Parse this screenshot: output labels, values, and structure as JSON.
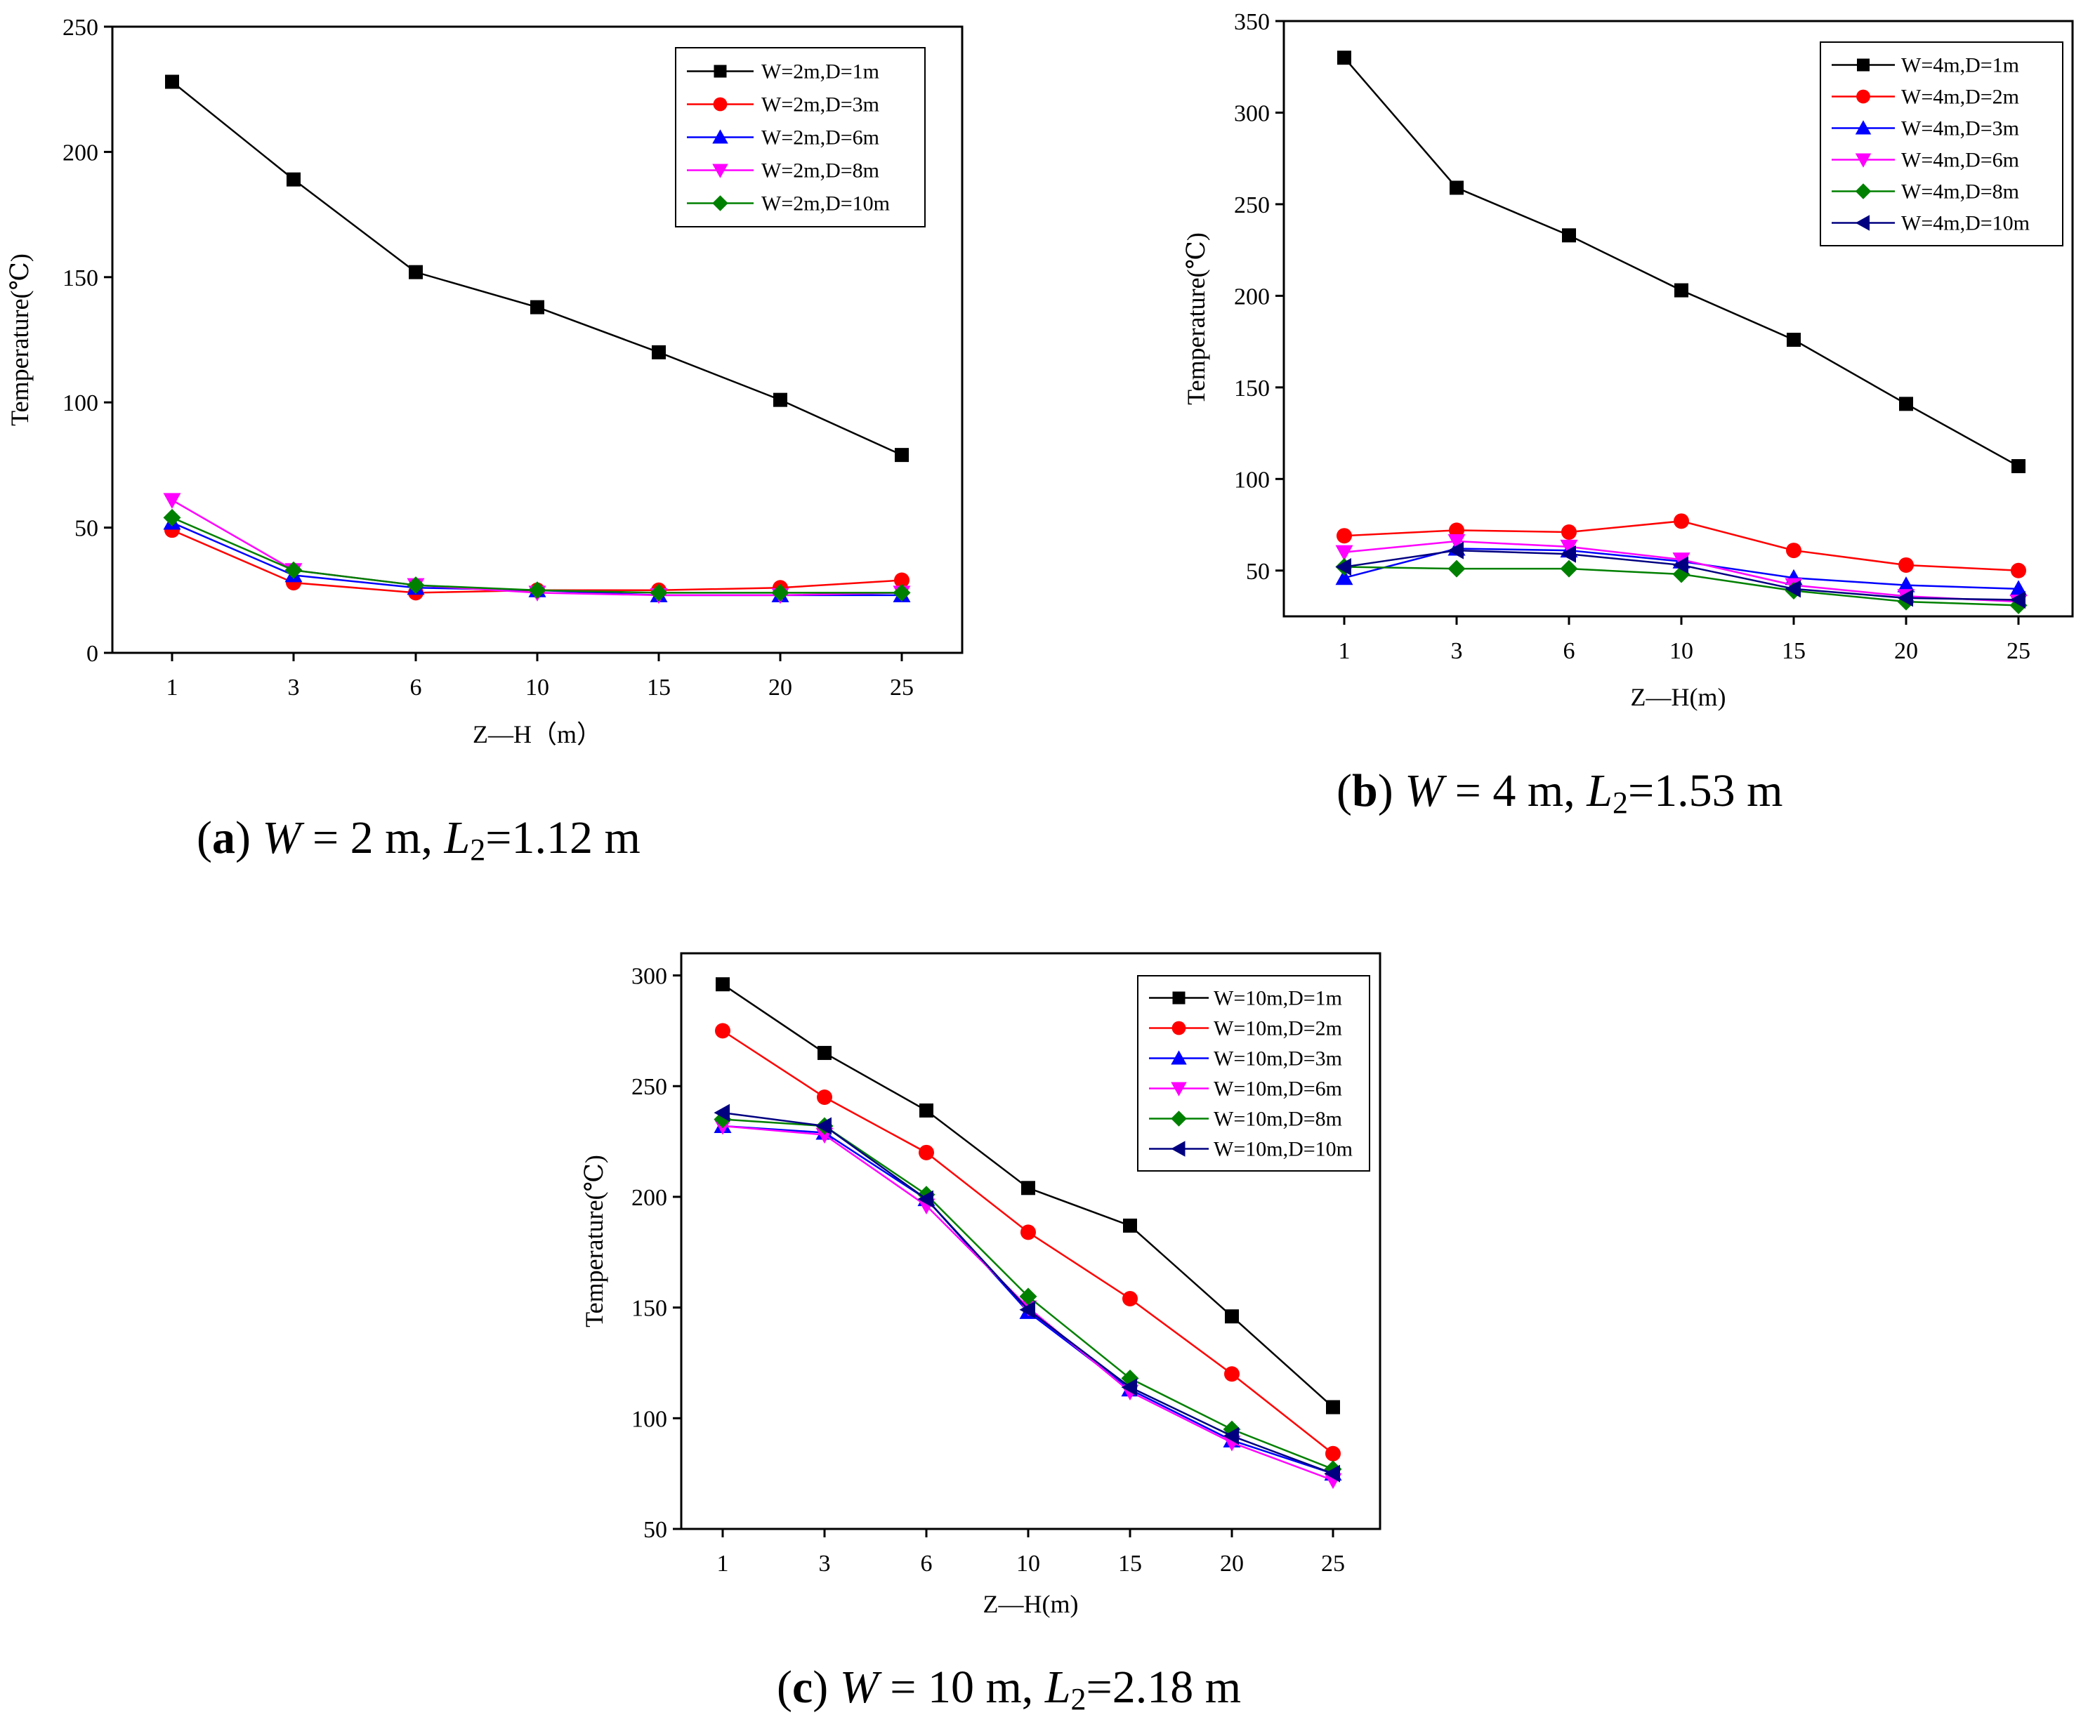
{
  "chart_data": [
    {
      "type": "line",
      "panel": "a",
      "caption": {
        "letter": "a",
        "width_var": "W",
        "width_value": "= 2 m,",
        "l_var": "L",
        "l_sub": "2",
        "l_value": "=1.12 m"
      },
      "xlabel": "Z—H（m）",
      "ylabel": "Temperature(℃)",
      "categories": [
        "1",
        "3",
        "6",
        "10",
        "15",
        "20",
        "25"
      ],
      "ylim": [
        0,
        250
      ],
      "yticks": [
        0,
        50,
        100,
        150,
        200,
        250
      ],
      "legend_position": "top-right",
      "series": [
        {
          "name": "W=2m,D=1m",
          "color": "#000000",
          "marker": "square",
          "values": [
            228,
            189,
            152,
            138,
            120,
            101,
            79
          ]
        },
        {
          "name": "W=2m,D=3m",
          "color": "#ff0000",
          "marker": "circle",
          "values": [
            49,
            28,
            24,
            25,
            25,
            26,
            29
          ]
        },
        {
          "name": "W=2m,D=6m",
          "color": "#0000ff",
          "marker": "triangle-up",
          "values": [
            52,
            31,
            26,
            25,
            23,
            23,
            23
          ]
        },
        {
          "name": "W=2m,D=8m",
          "color": "#ff00ff",
          "marker": "triangle-down",
          "values": [
            61,
            33,
            27,
            24,
            23,
            23,
            24
          ]
        },
        {
          "name": "W=2m,D=10m",
          "color": "#008000",
          "marker": "diamond",
          "values": [
            54,
            33,
            27,
            25,
            24,
            24,
            24
          ]
        }
      ]
    },
    {
      "type": "line",
      "panel": "b",
      "caption": {
        "letter": "b",
        "width_var": "W",
        "width_value": "= 4 m,",
        "l_var": "L",
        "l_sub": "2",
        "l_value": "=1.53 m"
      },
      "xlabel": "Z—H(m)",
      "ylabel": "Temperature(℃)",
      "categories": [
        "1",
        "3",
        "6",
        "10",
        "15",
        "20",
        "25"
      ],
      "ylim": [
        25,
        350
      ],
      "yticks": [
        50,
        100,
        150,
        200,
        250,
        300,
        350
      ],
      "legend_position": "top-right",
      "series": [
        {
          "name": "W=4m,D=1m",
          "color": "#000000",
          "marker": "square",
          "values": [
            330,
            259,
            233,
            203,
            176,
            141,
            107
          ]
        },
        {
          "name": "W=4m,D=2m",
          "color": "#ff0000",
          "marker": "circle",
          "values": [
            69,
            72,
            71,
            77,
            61,
            53,
            50
          ]
        },
        {
          "name": "W=4m,D=3m",
          "color": "#0000ff",
          "marker": "triangle-up",
          "values": [
            46,
            62,
            61,
            55,
            46,
            42,
            40
          ]
        },
        {
          "name": "W=4m,D=6m",
          "color": "#ff00ff",
          "marker": "triangle-down",
          "values": [
            60,
            66,
            63,
            56,
            42,
            36,
            33
          ]
        },
        {
          "name": "W=4m,D=8m",
          "color": "#008000",
          "marker": "diamond",
          "values": [
            52,
            51,
            51,
            48,
            39,
            33,
            31
          ]
        },
        {
          "name": "W=4m,D=10m",
          "color": "#000080",
          "marker": "triangle-left",
          "values": [
            52,
            61,
            59,
            53,
            40,
            35,
            34
          ]
        }
      ]
    },
    {
      "type": "line",
      "panel": "c",
      "caption": {
        "letter": "c",
        "width_var": "W",
        "width_value": "= 10 m,",
        "l_var": "L",
        "l_sub": "2",
        "l_value": "=2.18 m"
      },
      "xlabel": "Z—H(m)",
      "ylabel": "Temperature(℃)",
      "categories": [
        "1",
        "3",
        "6",
        "10",
        "15",
        "20",
        "25"
      ],
      "ylim": [
        50,
        310
      ],
      "yticks": [
        50,
        100,
        150,
        200,
        250,
        300
      ],
      "legend_position": "top-right",
      "series": [
        {
          "name": "W=10m,D=1m",
          "color": "#000000",
          "marker": "square",
          "values": [
            296,
            265,
            239,
            204,
            187,
            146,
            105
          ]
        },
        {
          "name": "W=10m,D=2m",
          "color": "#ff0000",
          "marker": "circle",
          "values": [
            275,
            245,
            220,
            184,
            154,
            120,
            84
          ]
        },
        {
          "name": "W=10m,D=3m",
          "color": "#0000ff",
          "marker": "triangle-up",
          "values": [
            232,
            229,
            199,
            148,
            113,
            90,
            75
          ]
        },
        {
          "name": "W=10m,D=6m",
          "color": "#ff00ff",
          "marker": "triangle-down",
          "values": [
            232,
            228,
            196,
            150,
            112,
            89,
            72
          ]
        },
        {
          "name": "W=10m,D=8m",
          "color": "#008000",
          "marker": "diamond",
          "values": [
            235,
            232,
            201,
            155,
            118,
            95,
            77
          ]
        },
        {
          "name": "W=10m,D=10m",
          "color": "#000080",
          "marker": "triangle-left",
          "values": [
            238,
            232,
            199,
            149,
            114,
            92,
            75
          ]
        }
      ]
    }
  ]
}
